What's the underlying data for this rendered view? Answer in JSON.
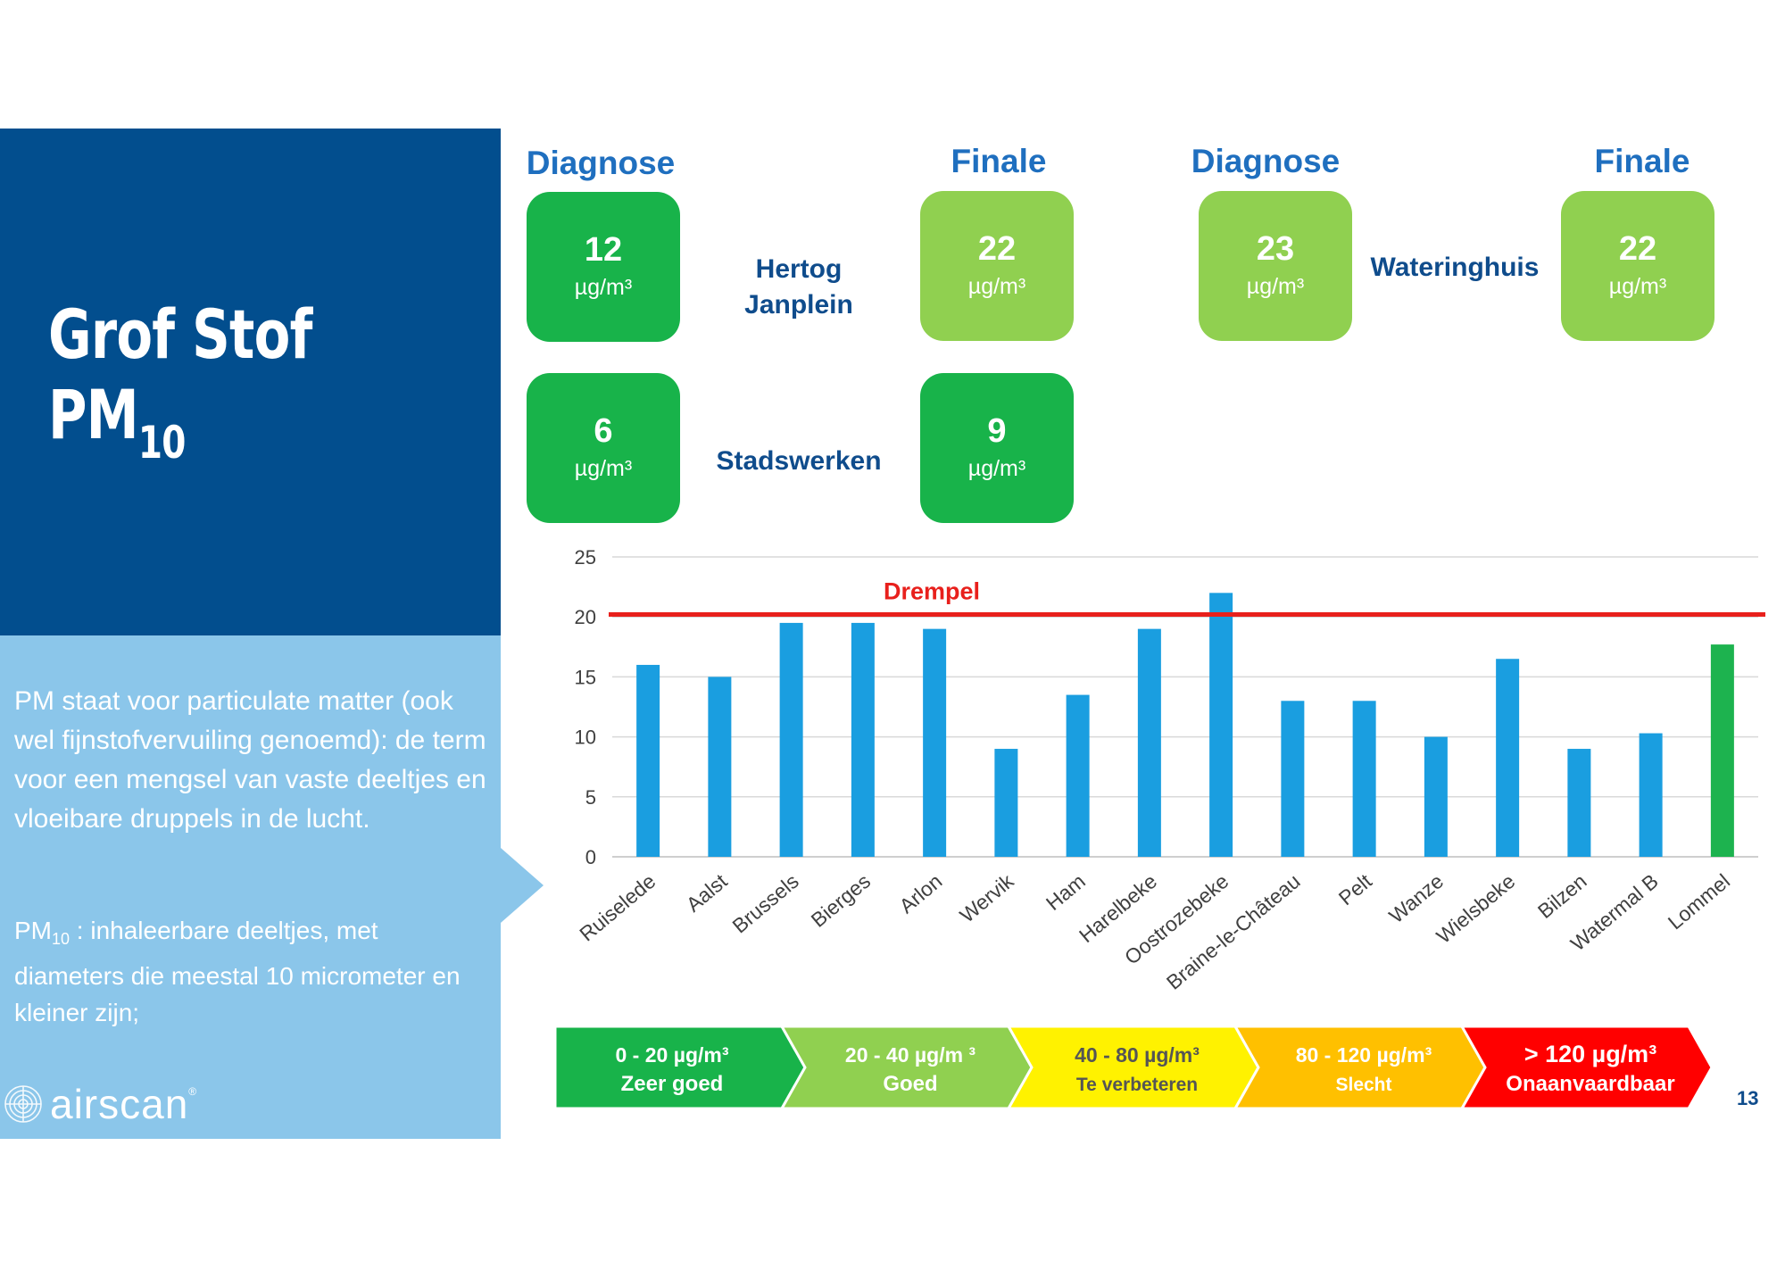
{
  "title": {
    "line1": "Grof Stof",
    "line2_main": "PM",
    "line2_sub": "10"
  },
  "description": "PM staat voor particulate matter (ook wel fijnstofvervuiling genoemd): de term voor een mengsel van vaste deeltjes en vloeibare druppels in de lucht.",
  "definition": {
    "term_main": "PM",
    "term_sub": "10",
    "text": " : inhaleerbare deeltjes, met diameters die meestal 10 micrometer en kleiner zijn;"
  },
  "logo": {
    "text": "airscan",
    "mark": "®"
  },
  "headers": {
    "diagnose_1": "Diagnose",
    "finale_1": "Finale",
    "diagnose_2": "Diagnose",
    "finale_2": "Finale"
  },
  "measurements": [
    {
      "location_line1": "Hertog",
      "location_line2": "Janplein",
      "diagnose": "12",
      "finale": "22",
      "diagnose_color": "#18b34a",
      "finale_color": "#90d050"
    },
    {
      "location_line1": "Wateringhuis",
      "location_line2": "",
      "diagnose": "23",
      "finale": "22",
      "diagnose_color": "#90d050",
      "finale_color": "#90d050"
    },
    {
      "location_line1": "Stadswerken",
      "location_line2": "",
      "diagnose": "6",
      "finale": "9",
      "diagnose_color": "#18b34a",
      "finale_color": "#18b34a"
    }
  ],
  "unit": "µg/m³",
  "chart_data": {
    "type": "bar",
    "title": "",
    "xlabel": "",
    "ylabel": "",
    "ylim": [
      0,
      25
    ],
    "yticks": [
      "0",
      "5",
      "10",
      "15",
      "20",
      "25"
    ],
    "grid": true,
    "categories": [
      "Ruiselede",
      "Aalst",
      "Brussels",
      "Bierges",
      "Arlon",
      "Wervik",
      "Ham",
      "Harelbeke",
      "Oostrozebeke",
      "Braine-le-Château",
      "Pelt",
      "Wanze",
      "Wielsbeke",
      "Bilzen",
      "Watermal B",
      "Lommel"
    ],
    "values": [
      16,
      15,
      19.5,
      19.5,
      19,
      9,
      13.5,
      19,
      22,
      13,
      13,
      10,
      16.5,
      9,
      10.3,
      17.7
    ],
    "bar_colors": [
      "#1a9ee0",
      "#1a9ee0",
      "#1a9ee0",
      "#1a9ee0",
      "#1a9ee0",
      "#1a9ee0",
      "#1a9ee0",
      "#1a9ee0",
      "#1a9ee0",
      "#1a9ee0",
      "#1a9ee0",
      "#1a9ee0",
      "#1a9ee0",
      "#1a9ee0",
      "#1a9ee0",
      "#1db34f"
    ],
    "threshold": {
      "label": "Drempel",
      "value": 20.2,
      "color": "#e8201c"
    }
  },
  "scale": [
    {
      "range": "0 - 20 µg/m³",
      "label": "Zeer goed",
      "color": "#18b34a",
      "text_color": "#ffffff"
    },
    {
      "range": "20 - 40 µg/m ³",
      "label": "Goed",
      "color": "#90d050",
      "text_color": "#ffffff"
    },
    {
      "range": "40 - 80 µg/m³",
      "label": "Te verbeteren",
      "color": "#fff200",
      "text_color": "#555555"
    },
    {
      "range": "80 - 120 µg/m³",
      "label": "Slecht",
      "color": "#ffc000",
      "text_color": "#ffffff"
    },
    {
      "range": "> 120 µg/m³",
      "label": "Onaanvaardbaar",
      "color": "#ff0000",
      "text_color": "#ffffff"
    }
  ],
  "page_number": "13"
}
